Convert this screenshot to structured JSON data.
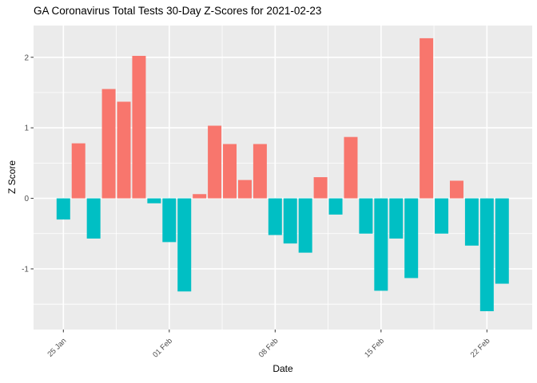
{
  "title": "GA Coronavirus Total Tests 30-Day Z-Scores for 2021-02-23",
  "chart_data": {
    "type": "bar",
    "title": "GA Coronavirus Total Tests 30-Day Z-Scores for 2021-02-23",
    "xlabel": "Date",
    "ylabel": "Z Score",
    "x": [
      "25 Jan",
      "26 Jan",
      "27 Jan",
      "28 Jan",
      "29 Jan",
      "30 Jan",
      "31 Jan",
      "01 Feb",
      "02 Feb",
      "03 Feb",
      "04 Feb",
      "05 Feb",
      "06 Feb",
      "07 Feb",
      "08 Feb",
      "09 Feb",
      "10 Feb",
      "11 Feb",
      "12 Feb",
      "13 Feb",
      "14 Feb",
      "15 Feb",
      "16 Feb",
      "17 Feb",
      "18 Feb",
      "19 Feb",
      "20 Feb",
      "21 Feb",
      "22 Feb",
      "23 Feb"
    ],
    "values": [
      -0.3,
      0.78,
      -0.57,
      1.55,
      1.37,
      2.02,
      -0.07,
      -0.62,
      -1.32,
      0.06,
      1.03,
      0.77,
      0.26,
      0.77,
      -0.52,
      -0.64,
      -0.77,
      0.3,
      -0.23,
      0.87,
      -0.5,
      -1.31,
      -0.57,
      -1.13,
      2.27,
      -0.5,
      0.25,
      -0.67,
      -1.6,
      -1.21
    ],
    "x_major_tick_indices": [
      0,
      7,
      14,
      21,
      28
    ],
    "y_ticks": [
      2,
      1,
      0,
      -1
    ],
    "y_minor_ticks": [
      1.5,
      0.5,
      -0.5,
      -1.5
    ],
    "ylim": [
      -1.86,
      2.45
    ],
    "grid": true,
    "legend": "none",
    "positive_color": "#F8766D",
    "negative_color": "#00BFC4",
    "panel_bg": "#EBEBEB",
    "grid_color": "#FFFFFF",
    "axis_text_color": "#4D4D4D",
    "tick_mark_color": "#333333"
  }
}
